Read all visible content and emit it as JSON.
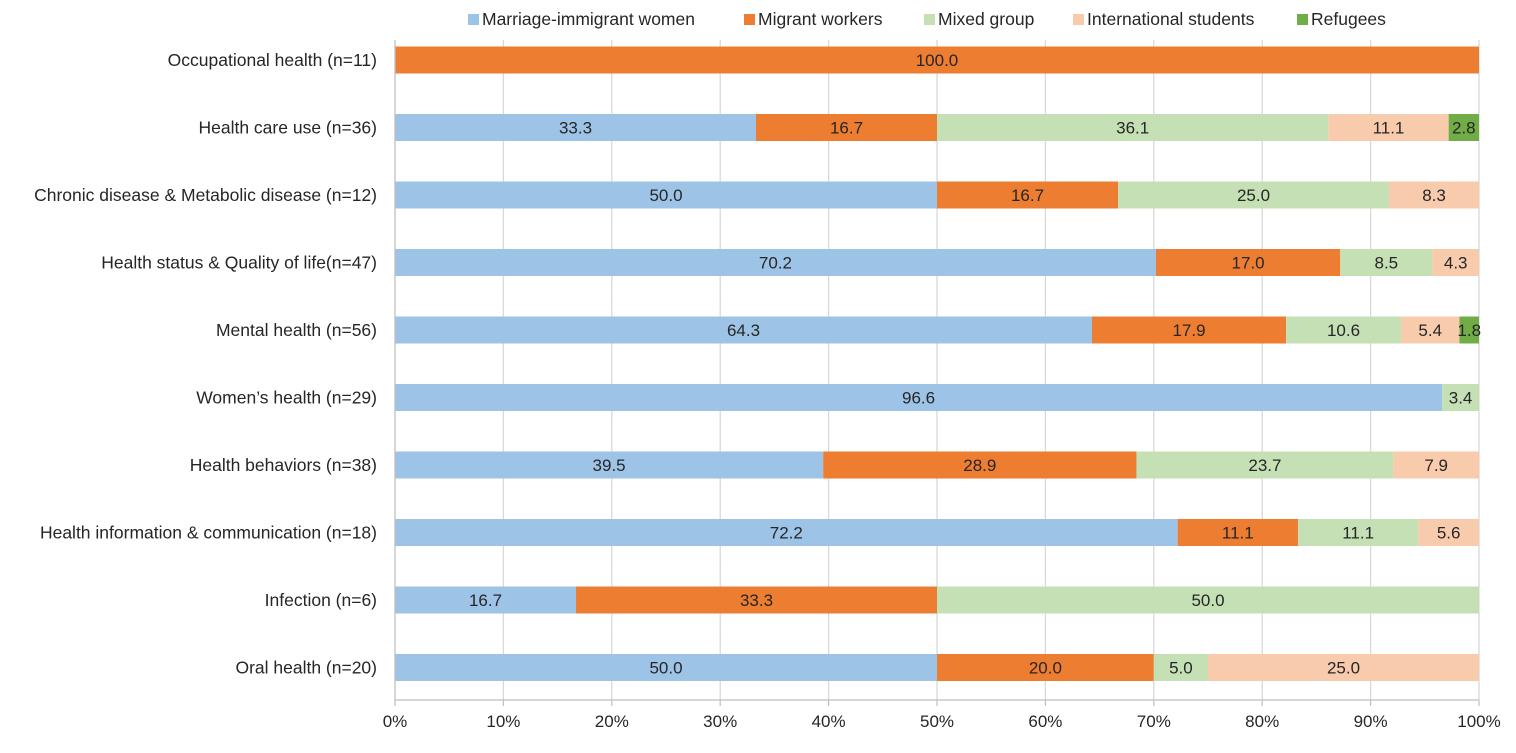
{
  "chart_data": {
    "type": "bar",
    "orientation": "horizontal",
    "stacked": "percent",
    "title": "",
    "xlabel": "",
    "ylabel": "",
    "xlim": [
      0,
      100
    ],
    "x_ticks": [
      "0%",
      "10%",
      "20%",
      "30%",
      "40%",
      "50%",
      "60%",
      "70%",
      "80%",
      "90%",
      "100%"
    ],
    "grid": "vertical",
    "legend_position": "top",
    "categories": [
      "Occupational health (n=11)",
      "Health care use (n=36)",
      "Chronic disease & Metabolic disease (n=12)",
      "Health status & Quality of life(n=47)",
      "Mental health (n=56)",
      "Women’s health (n=29)",
      "Health behaviors (n=38)",
      "Health information & communication (n=18)",
      "Infection (n=6)",
      "Oral health (n=20)"
    ],
    "series": [
      {
        "name": "Marriage-immigrant women",
        "color": "#9dc3e6",
        "values": [
          0,
          33.3,
          50.0,
          70.2,
          64.3,
          96.6,
          39.5,
          72.2,
          16.7,
          50.0
        ],
        "labels": [
          "",
          "33.3",
          "50.0",
          "70.2",
          "64.3",
          "96.6",
          "39.5",
          "72.2",
          "16.7",
          "50.0"
        ]
      },
      {
        "name": "Migrant workers",
        "color": "#ed7d31",
        "values": [
          100.0,
          16.7,
          16.7,
          17.0,
          17.9,
          0,
          28.9,
          11.1,
          33.3,
          20.0
        ],
        "labels": [
          "100.0",
          "16.7",
          "16.7",
          "17.0",
          "17.9",
          "",
          "28.9",
          "11.1",
          "33.3",
          "20.0"
        ]
      },
      {
        "name": "Mixed group",
        "color": "#c5e0b4",
        "values": [
          0,
          36.1,
          25.0,
          8.5,
          10.6,
          3.4,
          23.7,
          11.1,
          50.0,
          5.0
        ],
        "labels": [
          "",
          "36.1",
          "25.0",
          "8.5",
          "10.6",
          "3.4",
          "23.7",
          "11.1",
          "50.0",
          "5.0"
        ]
      },
      {
        "name": "International students",
        "color": "#f8cbad",
        "values": [
          0,
          11.1,
          8.3,
          4.3,
          5.4,
          0,
          7.9,
          5.6,
          0,
          25.0
        ],
        "labels": [
          "",
          "11.1",
          "8.3",
          "4.3",
          "5.4",
          "",
          "7.9",
          "5.6",
          "",
          "25.0"
        ]
      },
      {
        "name": "Refugees",
        "color": "#70ad47",
        "values": [
          0,
          2.8,
          0,
          0,
          1.8,
          0,
          0,
          0,
          0,
          0
        ],
        "labels": [
          "",
          "2.8",
          "",
          "",
          "1.8",
          "",
          "",
          "",
          "",
          ""
        ]
      }
    ]
  }
}
